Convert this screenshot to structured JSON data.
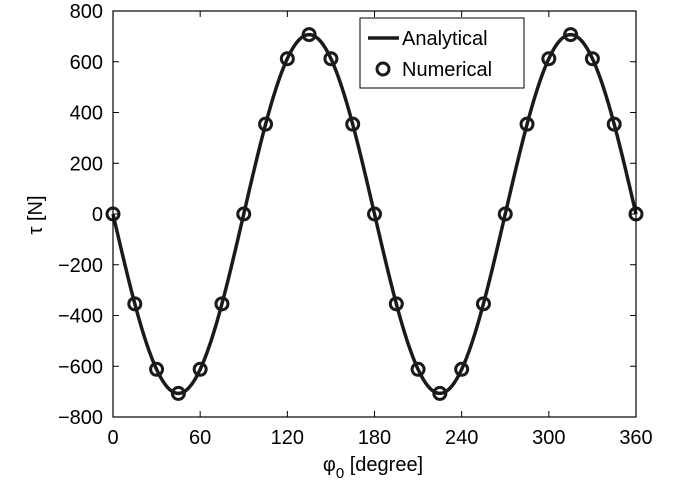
{
  "chart_data": {
    "type": "line",
    "xlabel_main": "φ",
    "xlabel_sub": "0",
    "xlabel_rest": " [degree]",
    "ylabel": "τ [N]",
    "xlim": [
      0,
      360
    ],
    "ylim": [
      -800,
      800
    ],
    "xticks": [
      0,
      60,
      120,
      180,
      240,
      300,
      360
    ],
    "yticks": [
      -800,
      -600,
      -400,
      -200,
      0,
      200,
      400,
      600,
      800
    ],
    "ytick_labels": [
      "−800",
      "−600",
      "−400",
      "−200",
      "0",
      "200",
      "400",
      "600",
      "800"
    ],
    "grid": false,
    "legend_position": "top-right",
    "series": [
      {
        "name": "Analytical",
        "style": "solid-line",
        "color": "#1a1a1a",
        "function": "-707*sin(2*x)",
        "amplitude": 707
      },
      {
        "name": "Numerical",
        "style": "open-circle-markers",
        "color": "#1a1a1a",
        "x": [
          0,
          15,
          30,
          45,
          60,
          75,
          90,
          105,
          120,
          135,
          150,
          165,
          180,
          195,
          210,
          225,
          240,
          255,
          270,
          285,
          300,
          315,
          330,
          345,
          360
        ],
        "y": [
          0,
          -354,
          -612,
          -707,
          -612,
          -354,
          0,
          354,
          612,
          707,
          612,
          354,
          0,
          -354,
          -612,
          -707,
          -612,
          -354,
          0,
          354,
          612,
          707,
          612,
          354,
          0
        ]
      }
    ]
  }
}
